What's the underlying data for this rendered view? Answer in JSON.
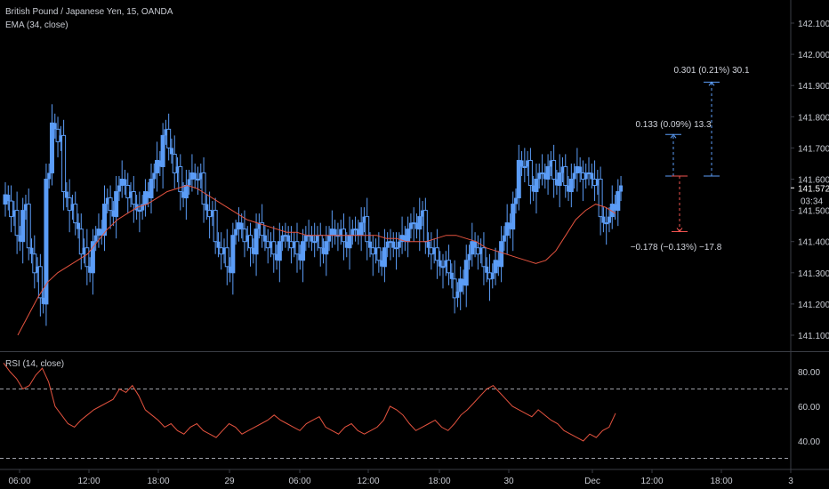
{
  "legend": {
    "symbol": "British Pound / Japanese Yen, 15, OANDA",
    "ema": "EMA (34, close)",
    "rsi": "RSI (14, close)"
  },
  "price_axis": {
    "ticks": [
      "142.100",
      "142.000",
      "141.900",
      "141.800",
      "141.700",
      "141.600",
      "141.500",
      "141.400",
      "141.300",
      "141.200",
      "141.100"
    ],
    "last_price": "141.572",
    "countdown": "03:34"
  },
  "rsi_axis": {
    "ticks": [
      "80.00",
      "60.00",
      "40.00"
    ]
  },
  "time_axis": {
    "labels": [
      "06:00",
      "12:00",
      "18:00",
      "29",
      "06:00",
      "12:00",
      "18:00",
      "30",
      "Dec",
      "12:00",
      "18:00",
      "3"
    ]
  },
  "measurements": [
    {
      "label": "0.133 (0.09%) 13.3",
      "direction": "up",
      "color": "#5b9cf6"
    },
    {
      "label": "0.301 (0.21%) 30.1",
      "direction": "up",
      "color": "#5b9cf6"
    },
    {
      "label": "−0.178 (−0.13%) −17.8",
      "direction": "down",
      "color": "#ef5350"
    }
  ],
  "colors": {
    "background": "#000000",
    "candle_up": "#5b9cf6",
    "candle_down": "#5b9cf6",
    "ema": "#e5533f",
    "rsi": "#e5533f",
    "rsi_bands": "#9ea1a8",
    "axis_text": "#c8cbd2",
    "separator": "#3a3d45"
  },
  "chart_data": [
    {
      "type": "candlestick",
      "title": "British Pound / Japanese Yen, 15, OANDA",
      "ylim": [
        141.05,
        142.15
      ],
      "series": [
        {
          "name": "GBPJPY",
          "values_close": [
            141.55,
            141.48,
            141.42,
            141.5,
            141.38,
            141.3,
            141.22,
            141.6,
            141.78,
            141.72,
            141.56,
            141.5,
            141.46,
            141.36,
            141.32,
            141.4,
            141.44,
            141.52,
            141.5,
            141.56,
            141.6,
            141.54,
            141.52,
            141.5,
            141.56,
            141.6,
            141.66,
            141.74,
            141.7,
            141.62,
            141.56,
            141.58,
            141.62,
            141.6,
            141.52,
            141.48,
            141.4,
            141.36,
            141.32,
            141.42,
            141.46,
            141.4,
            141.38,
            141.44,
            141.42,
            141.38,
            141.36,
            141.4,
            141.42,
            141.38,
            141.36,
            141.4,
            141.42,
            141.4,
            141.38,
            141.4,
            141.44,
            141.42,
            141.4,
            141.42,
            141.44,
            141.46,
            141.4,
            141.36,
            141.34,
            141.38,
            141.4,
            141.38,
            141.42,
            141.44,
            141.46,
            141.48,
            141.4,
            141.36,
            141.34,
            141.32,
            141.3,
            141.22,
            141.28,
            141.34,
            141.4,
            141.36,
            141.32,
            141.28,
            141.34,
            141.4,
            141.46,
            141.52,
            141.66,
            141.64,
            141.58,
            141.6,
            141.62,
            141.64,
            141.6,
            141.62,
            141.58,
            141.6,
            141.64,
            141.6,
            141.62,
            141.58,
            141.48,
            141.46,
            141.52,
            141.56
          ]
        },
        {
          "name": "EMA (34, close)",
          "values": [
            141.1,
            141.16,
            141.22,
            141.27,
            141.3,
            141.32,
            141.34,
            141.36,
            141.4,
            141.44,
            141.47,
            141.49,
            141.51,
            141.52,
            141.54,
            141.56,
            141.57,
            141.58,
            141.57,
            141.55,
            141.53,
            141.51,
            141.49,
            141.47,
            141.46,
            141.45,
            141.44,
            141.43,
            141.43,
            141.42,
            141.42,
            141.42,
            141.42,
            141.42,
            141.42,
            141.42,
            141.42,
            141.41,
            141.41,
            141.4,
            141.4,
            141.4,
            141.41,
            141.42,
            141.42,
            141.41,
            141.4,
            141.38,
            141.37,
            141.36,
            141.35,
            141.34,
            141.33,
            141.34,
            141.37,
            141.42,
            141.47,
            141.5,
            141.52,
            141.51,
            141.49
          ]
        }
      ]
    },
    {
      "type": "line",
      "title": "RSI (14, close)",
      "ylim": [
        27,
        87
      ],
      "series": [
        {
          "name": "RSI (14, close)",
          "values": [
            85,
            80,
            76,
            70,
            72,
            78,
            82,
            74,
            60,
            55,
            50,
            48,
            52,
            55,
            58,
            60,
            62,
            64,
            70,
            68,
            72,
            66,
            58,
            55,
            52,
            48,
            50,
            46,
            44,
            48,
            50,
            46,
            44,
            42,
            46,
            50,
            48,
            44,
            46,
            48,
            50,
            52,
            55,
            52,
            50,
            48,
            46,
            50,
            52,
            54,
            48,
            46,
            44,
            48,
            50,
            46,
            44,
            46,
            48,
            52,
            60,
            58,
            55,
            50,
            46,
            48,
            50,
            52,
            48,
            46,
            50,
            55,
            58,
            62,
            66,
            70,
            72,
            68,
            64,
            60,
            58,
            56,
            54,
            58,
            55,
            52,
            50,
            46,
            44,
            42,
            40,
            44,
            42,
            46,
            48,
            56
          ]
        }
      ],
      "bands": [
        70,
        30
      ]
    }
  ]
}
